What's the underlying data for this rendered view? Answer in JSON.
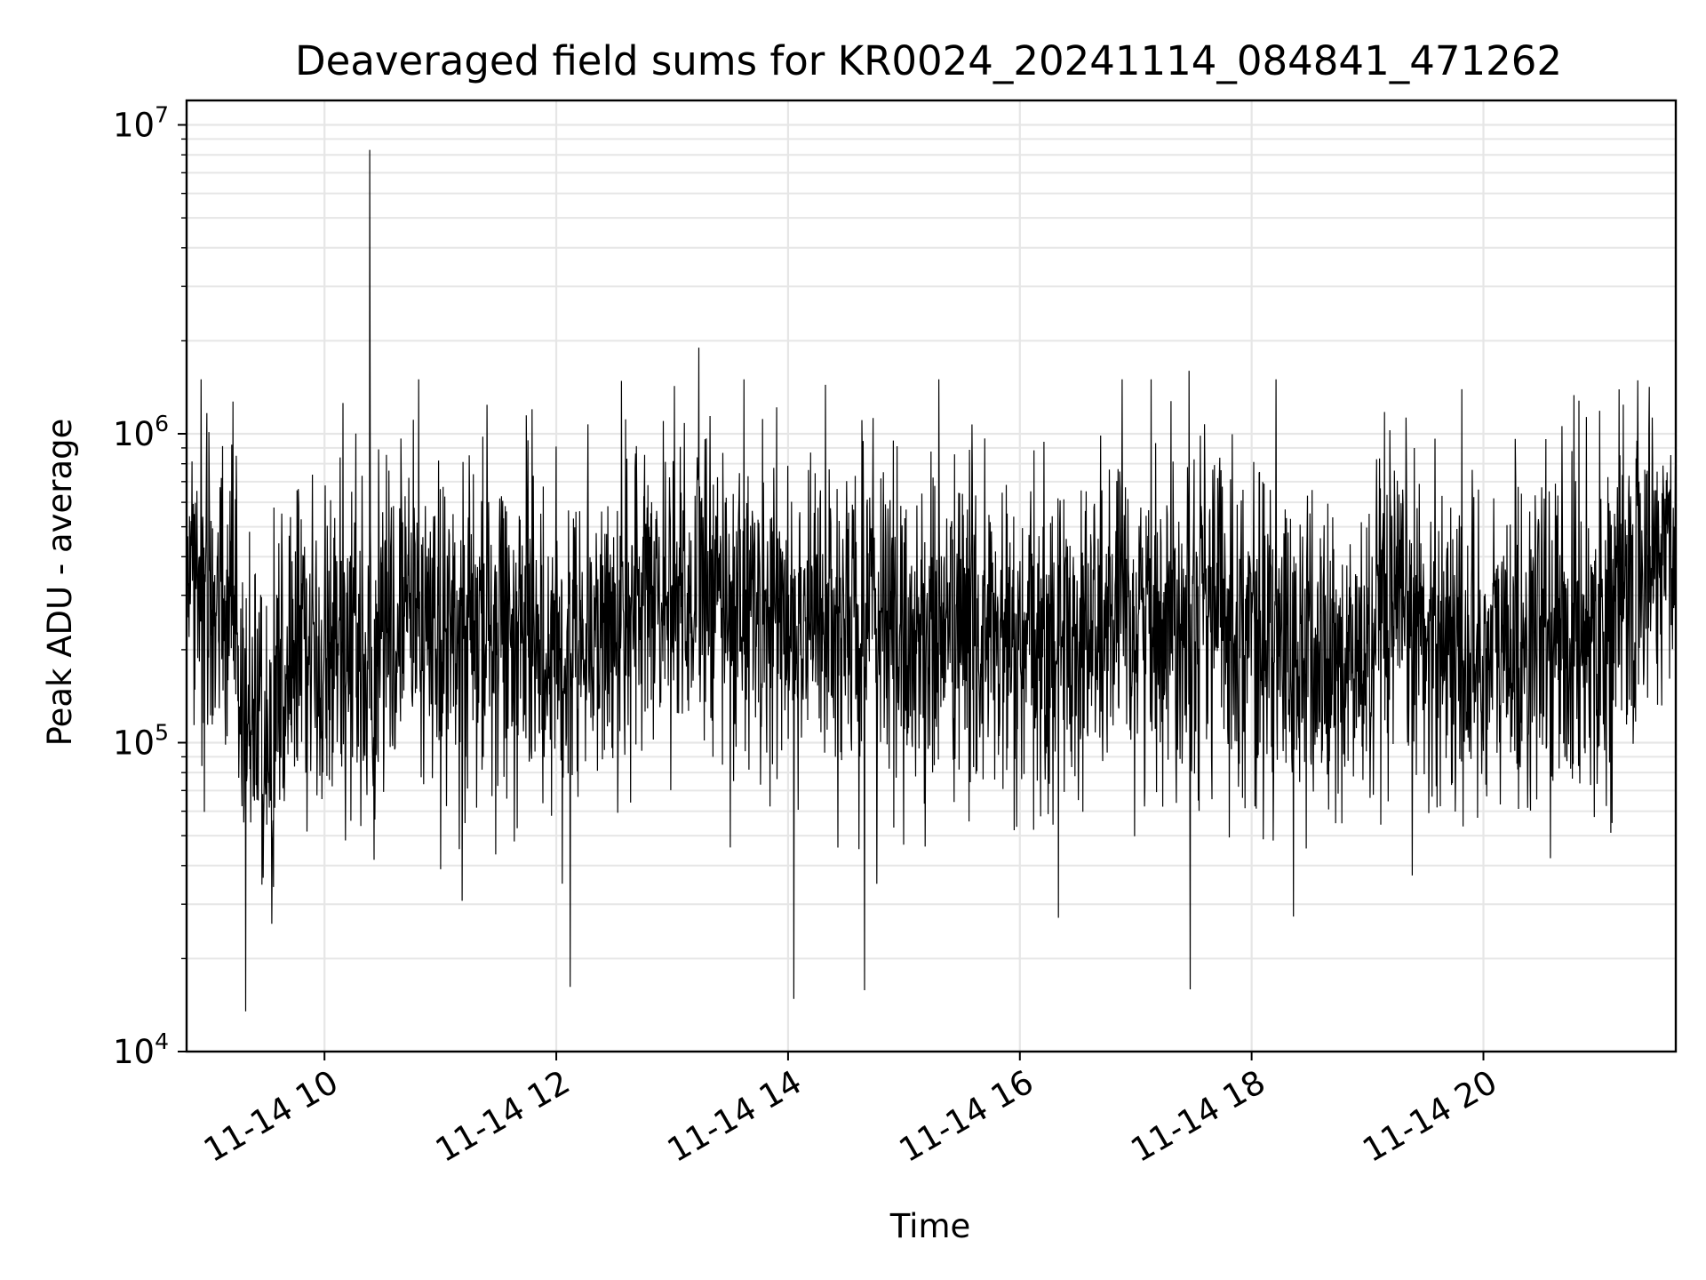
{
  "chart_data": {
    "type": "line",
    "title": "Deaveraged field sums for KR0024_20241114_084841_471262",
    "xlabel": "Time",
    "ylabel": "Peak ADU - average",
    "yscale": "log",
    "ylim": [
      10000,
      12000000
    ],
    "xlim_hours": [
      8.81,
      21.66
    ],
    "grid": true,
    "line_color": "#000000",
    "grid_color": "#e6e6e6",
    "x_ticks": [
      {
        "hour": 10,
        "label": "11-14 10"
      },
      {
        "hour": 12,
        "label": "11-14 12"
      },
      {
        "hour": 14,
        "label": "11-14 14"
      },
      {
        "hour": 16,
        "label": "11-14 16"
      },
      {
        "hour": 18,
        "label": "11-14 18"
      },
      {
        "hour": 20,
        "label": "11-14 20"
      }
    ],
    "y_ticks": [
      {
        "value": 10000,
        "base": "10",
        "exp": "4"
      },
      {
        "value": 100000,
        "base": "10",
        "exp": "5"
      },
      {
        "value": 1000000,
        "base": "10",
        "exp": "6"
      },
      {
        "value": 10000000,
        "base": "10",
        "exp": "7"
      }
    ],
    "series": [
      {
        "x_hours": [
          8.81,
          9.0,
          9.2,
          9.4,
          9.5,
          9.6,
          9.8,
          10.0,
          10.2,
          10.4,
          10.6,
          10.8,
          11.0,
          11.2,
          11.4,
          11.6,
          11.8,
          12.0,
          12.2,
          12.4,
          12.6,
          12.8,
          13.0,
          13.2,
          13.4,
          13.6,
          13.8,
          14.0,
          14.2,
          14.4,
          14.6,
          14.8,
          15.0,
          15.2,
          15.4,
          15.6,
          15.8,
          16.0,
          16.2,
          16.4,
          16.6,
          16.8,
          17.0,
          17.2,
          17.4,
          17.6,
          17.8,
          18.0,
          18.2,
          18.4,
          18.6,
          18.8,
          19.0,
          19.2,
          19.4,
          19.6,
          19.8,
          20.0,
          20.2,
          20.4,
          20.6,
          20.8,
          21.0,
          21.2,
          21.4,
          21.66
        ],
        "y_values": [
          350000,
          300000,
          220000,
          90000,
          80000,
          180000,
          200000,
          220000,
          230000,
          160000,
          250000,
          280000,
          210000,
          200000,
          250000,
          230000,
          220000,
          200000,
          240000,
          230000,
          250000,
          300000,
          330000,
          320000,
          280000,
          300000,
          260000,
          240000,
          270000,
          230000,
          250000,
          260000,
          210000,
          220000,
          240000,
          230000,
          210000,
          180000,
          200000,
          220000,
          230000,
          240000,
          250000,
          260000,
          280000,
          300000,
          260000,
          240000,
          200000,
          190000,
          180000,
          170000,
          190000,
          230000,
          240000,
          230000,
          200000,
          190000,
          200000,
          210000,
          220000,
          230000,
          250000,
          280000,
          380000,
          450000
        ]
      }
    ],
    "spikes": [
      {
        "hour": 10.39,
        "value": 8300000
      },
      {
        "hour": 13.23,
        "value": 1900000
      },
      {
        "hour": 17.46,
        "value": 1600000
      },
      {
        "hour": 9.32,
        "value": 13500
      },
      {
        "hour": 14.05,
        "value": 14800
      },
      {
        "hour": 14.66,
        "value": 15800
      },
      {
        "hour": 17.47,
        "value": 15900
      },
      {
        "hour": 12.12,
        "value": 16200
      }
    ]
  }
}
